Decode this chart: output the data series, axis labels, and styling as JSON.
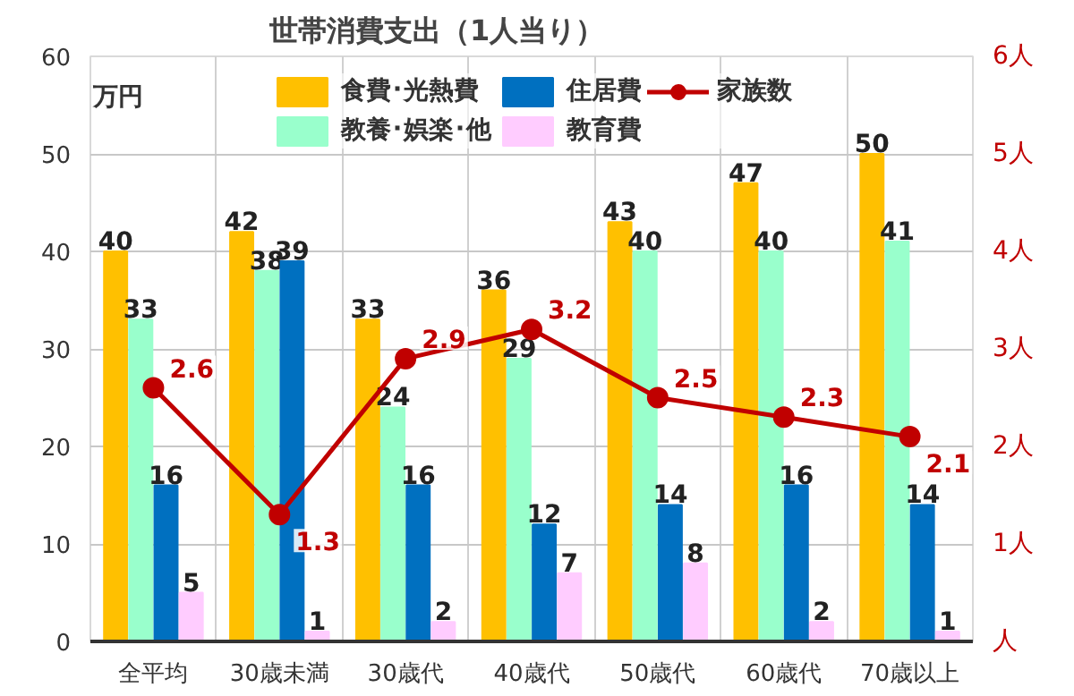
{
  "chart_data": {
    "type": "bar",
    "title": "世帯消費支出（1人当り）",
    "ylabel": "万円",
    "categories": [
      "全平均",
      "30歳未満",
      "30歳代",
      "40歳代",
      "50歳代",
      "60歳代",
      "70歳以上"
    ],
    "series": [
      {
        "name": "食費･光熱費",
        "color": "#ffc000",
        "values": [
          40,
          42,
          33,
          36,
          43,
          47,
          50
        ]
      },
      {
        "name": "教養･娯楽･他",
        "color": "#99ffcc",
        "values": [
          33,
          38,
          24,
          29,
          40,
          40,
          41
        ]
      },
      {
        "name": "住居費",
        "color": "#0070c0",
        "values": [
          16,
          39,
          16,
          12,
          14,
          16,
          14
        ]
      },
      {
        "name": "教育費",
        "color": "#ffccff",
        "values": [
          5,
          1,
          2,
          7,
          8,
          2,
          1
        ]
      },
      {
        "name": "家族数",
        "type": "line",
        "axis": "y2",
        "color": "#c00000",
        "marker": "circle",
        "values": [
          2.6,
          1.3,
          2.9,
          3.2,
          2.5,
          2.3,
          2.1
        ]
      }
    ],
    "ylim": [
      0,
      60
    ],
    "yticks": [
      0,
      10,
      20,
      30,
      40,
      50,
      60
    ],
    "y2lim": [
      0,
      6
    ],
    "y2ticks": [
      {
        "value": 0,
        "label": "人"
      },
      {
        "value": 1,
        "label": "1人"
      },
      {
        "value": 2,
        "label": "2人"
      },
      {
        "value": 3,
        "label": "3人"
      },
      {
        "value": 4,
        "label": "4人"
      },
      {
        "value": 5,
        "label": "5人"
      },
      {
        "value": 6,
        "label": "6人"
      }
    ],
    "grid": true,
    "legend": "top",
    "data_labels": true
  }
}
